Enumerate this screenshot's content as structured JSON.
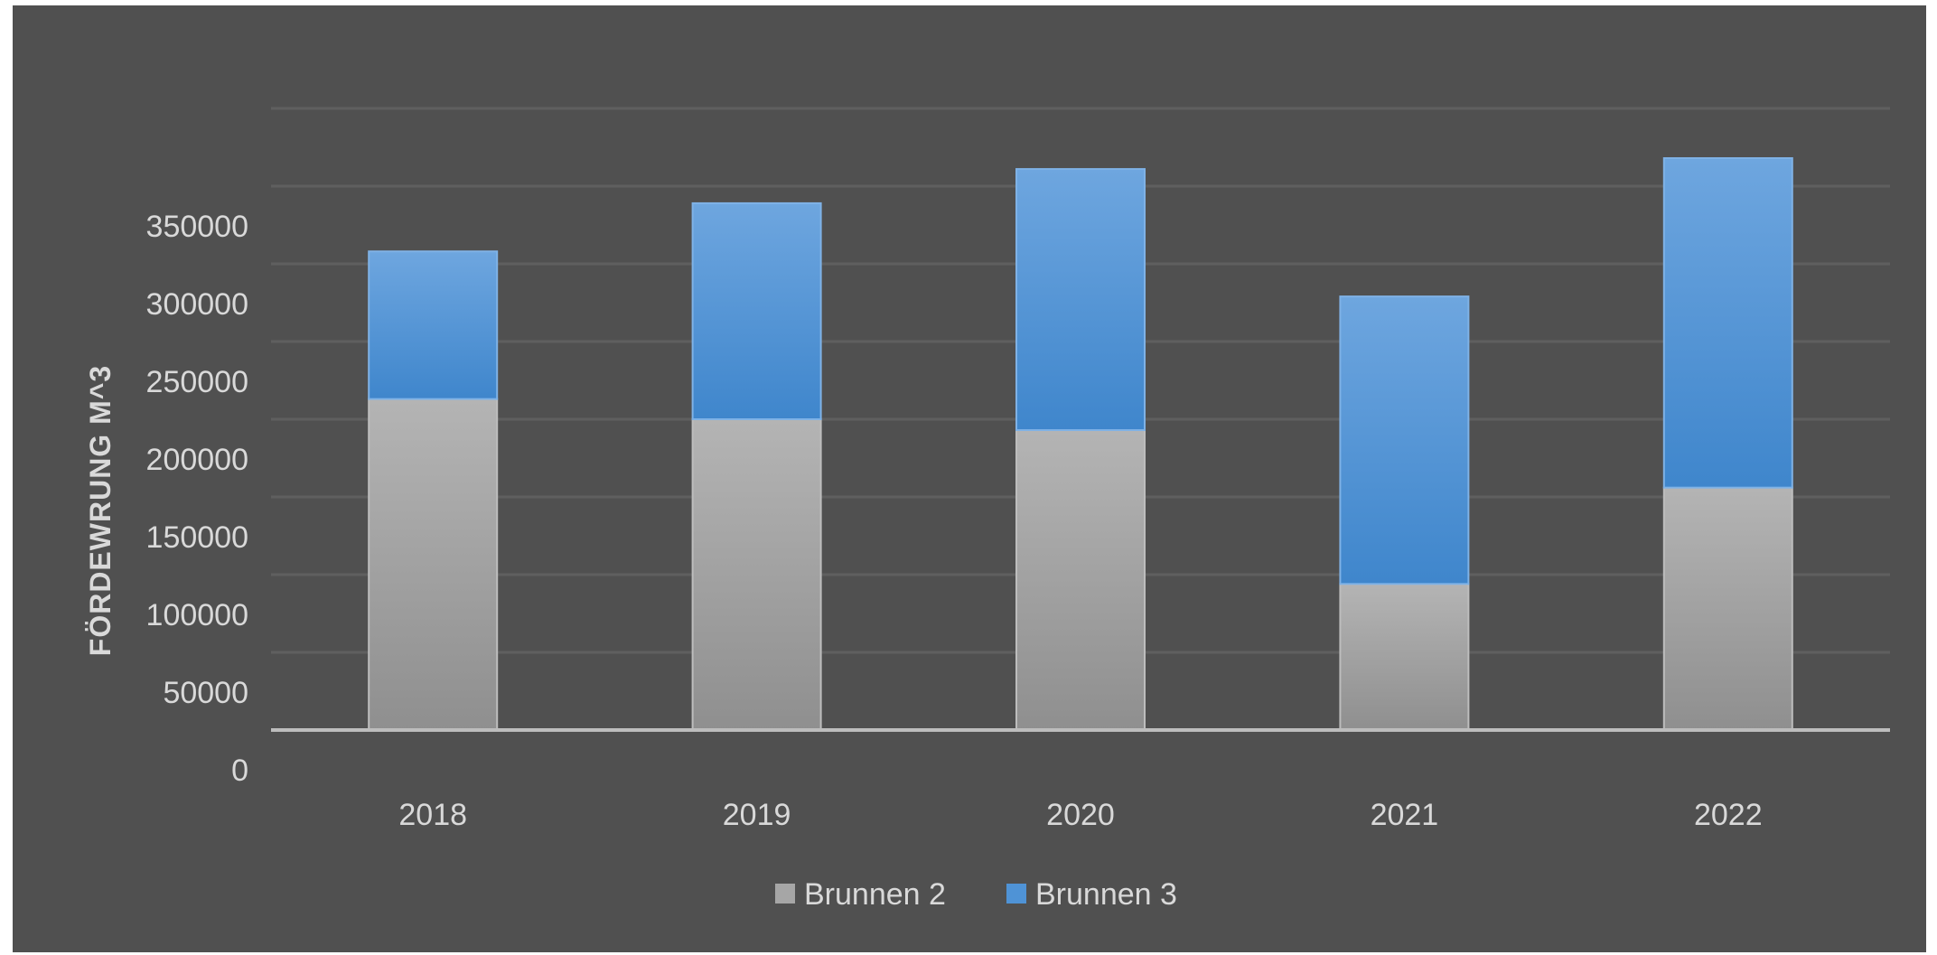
{
  "chart_data": {
    "type": "bar",
    "stacked": true,
    "title": "",
    "xlabel": "",
    "ylabel": "FÖRDEWRUNG M^3",
    "categories": [
      "2018",
      "2019",
      "2020",
      "2021",
      "2022"
    ],
    "series": [
      {
        "name": "Brunnen 2",
        "values": [
          213000,
          200000,
          193000,
          94000,
          156000
        ]
      },
      {
        "name": "Brunnen 3",
        "values": [
          95000,
          139000,
          168000,
          185000,
          212000
        ]
      }
    ],
    "y_ticks": [
      "0",
      "50000",
      "100000",
      "150000",
      "200000",
      "250000",
      "300000",
      "350000"
    ],
    "ylim": [
      0,
      350000
    ],
    "grid": true,
    "legend_position": "bottom",
    "colors": {
      "background": "#505050",
      "grid": "#5e5e5e",
      "baseline": "#bdbdbd",
      "text": "#d9d9d9",
      "Brunnen 2": "#a6a6a6",
      "Brunnen 3": "#4f93d6"
    }
  }
}
